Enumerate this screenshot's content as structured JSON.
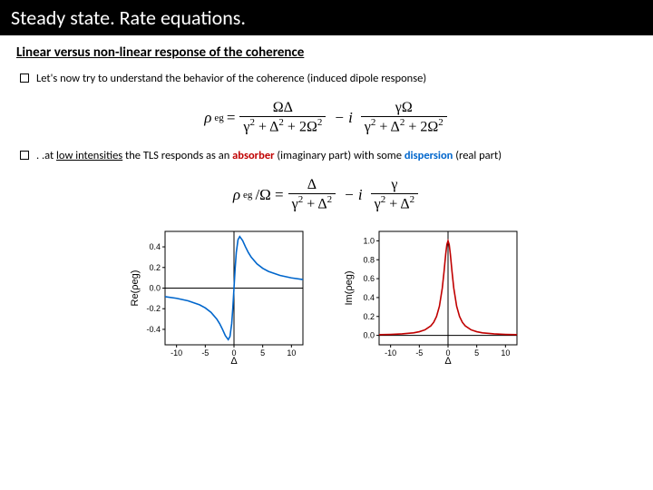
{
  "header": {
    "title": "Steady state. Rate equations."
  },
  "subtitle": "Linear versus non-linear response of the coherence",
  "bullets": {
    "b1": "Let's now try to understand the behavior of the coherence (induced dipole response)",
    "b2_pre": ". .at ",
    "b2_low": "low intensities",
    "b2_mid1": " the TLS responds as an ",
    "b2_abs": "absorber",
    "b2_mid2": " (imaginary part) with some ",
    "b2_disp": "dispersion",
    "b2_post": " (real part)"
  },
  "eq1": {
    "lhs_sym": "ρ",
    "lhs_sub": "eg",
    "eq": "=",
    "num1": "ΩΔ",
    "den1_a": "γ",
    "den1_b": "2",
    "den1_c": " + Δ",
    "den1_d": "2",
    "den1_e": " + 2Ω",
    "den1_f": "2",
    "minus_i": "− i",
    "num2": "γΩ",
    "den2_a": "γ",
    "den2_b": "2",
    "den2_c": " + Δ",
    "den2_d": "2",
    "den2_e": " + 2Ω",
    "den2_f": "2"
  },
  "eq2": {
    "lhs_sym": "ρ",
    "lhs_sub": "eg",
    "lhs_div": "/Ω =",
    "num1": "Δ",
    "den1_a": "γ",
    "den1_b": "2",
    "den1_c": " + Δ",
    "den1_d": "2",
    "minus_i": "− i",
    "num2": "γ",
    "den2_a": "γ",
    "den2_b": "2",
    "den2_c": " + Δ",
    "den2_d": "2"
  },
  "plot_left": {
    "type": "line",
    "ylabel": "Re(ρeg)",
    "xlabel": "Δ",
    "xlim": [
      -12,
      12
    ],
    "ylim": [
      -0.55,
      0.55
    ],
    "xticks": [
      -10,
      -5,
      0,
      5,
      10
    ],
    "yticks": [
      -0.4,
      -0.2,
      0.0,
      0.2,
      0.4
    ],
    "curve_color": "#0066cc",
    "background_color": "#ffffff",
    "axis_color": "#000000",
    "gamma": 1.0,
    "x": [
      -12,
      -10,
      -8,
      -6,
      -5,
      -4,
      -3,
      -2.5,
      -2,
      -1.5,
      -1,
      -0.7,
      -0.4,
      -0.2,
      0,
      0.2,
      0.4,
      0.7,
      1,
      1.5,
      2,
      2.5,
      3,
      4,
      5,
      6,
      8,
      10,
      12
    ],
    "y": [
      -0.083,
      -0.099,
      -0.123,
      -0.162,
      -0.192,
      -0.235,
      -0.3,
      -0.345,
      -0.4,
      -0.462,
      -0.5,
      -0.47,
      -0.345,
      -0.192,
      0,
      0.192,
      0.345,
      0.47,
      0.5,
      0.462,
      0.4,
      0.345,
      0.3,
      0.235,
      0.192,
      0.162,
      0.123,
      0.099,
      0.083
    ]
  },
  "plot_right": {
    "type": "line",
    "ylabel": "Im(ρeg)",
    "xlabel": "Δ",
    "xlim": [
      -12,
      12
    ],
    "ylim": [
      -0.1,
      1.1
    ],
    "xticks": [
      -10,
      -5,
      0,
      5,
      10
    ],
    "yticks": [
      0.0,
      0.2,
      0.4,
      0.6,
      0.8,
      1.0
    ],
    "curve_color": "#c00000",
    "background_color": "#ffffff",
    "axis_color": "#000000",
    "gamma": 1.0,
    "x": [
      -12,
      -10,
      -8,
      -6,
      -5,
      -4,
      -3,
      -2.5,
      -2,
      -1.5,
      -1,
      -0.7,
      -0.4,
      -0.2,
      0,
      0.2,
      0.4,
      0.7,
      1,
      1.5,
      2,
      2.5,
      3,
      4,
      5,
      6,
      8,
      10,
      12
    ],
    "y": [
      0.0069,
      0.0099,
      0.0154,
      0.027,
      0.0385,
      0.0588,
      0.1,
      0.138,
      0.2,
      0.308,
      0.5,
      0.671,
      0.862,
      0.962,
      1.0,
      0.962,
      0.862,
      0.671,
      0.5,
      0.308,
      0.2,
      0.138,
      0.1,
      0.0588,
      0.0385,
      0.027,
      0.0154,
      0.0099,
      0.0069
    ]
  }
}
